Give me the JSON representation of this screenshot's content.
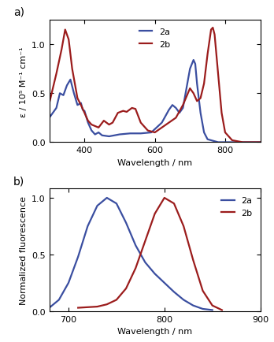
{
  "chart_data": [
    {
      "type": "line",
      "title": "a)",
      "x_label": "Wavelength / nm",
      "y_label": "ε / 10⁵ M⁻¹ cm⁻¹",
      "xlim": [
        300,
        900
      ],
      "xticks": [
        400,
        600,
        800
      ],
      "ylim": [
        0,
        1.25
      ],
      "yticks": [
        {
          "value": 0,
          "label": "0.0"
        },
        {
          "value": 0.5,
          "label": "0.5"
        },
        {
          "value": 1.0,
          "label": "1.0"
        }
      ],
      "legend": "upper center",
      "series": [
        {
          "name": "2a",
          "color": "#3a4ea0",
          "x": [
            300,
            320,
            330,
            340,
            350,
            360,
            370,
            380,
            390,
            395,
            400,
            410,
            420,
            430,
            440,
            450,
            470,
            500,
            530,
            560,
            590,
            620,
            640,
            650,
            660,
            670,
            680,
            690,
            700,
            710,
            715,
            720,
            730,
            740,
            750,
            780,
            900
          ],
          "values": [
            0.25,
            0.35,
            0.5,
            0.48,
            0.58,
            0.64,
            0.5,
            0.38,
            0.4,
            0.33,
            0.32,
            0.2,
            0.12,
            0.08,
            0.1,
            0.07,
            0.06,
            0.08,
            0.09,
            0.09,
            0.1,
            0.2,
            0.33,
            0.38,
            0.35,
            0.3,
            0.35,
            0.55,
            0.75,
            0.84,
            0.8,
            0.6,
            0.3,
            0.1,
            0.03,
            0.0,
            0.0
          ]
        },
        {
          "name": "2b",
          "color": "#9b1c1c",
          "x": [
            300,
            320,
            335,
            345,
            355,
            365,
            380,
            390,
            400,
            410,
            420,
            440,
            455,
            470,
            480,
            495,
            510,
            520,
            535,
            545,
            560,
            580,
            600,
            620,
            640,
            660,
            680,
            700,
            710,
            720,
            730,
            740,
            750,
            760,
            765,
            770,
            780,
            790,
            800,
            820,
            850,
            900
          ],
          "values": [
            0.4,
            0.7,
            0.95,
            1.15,
            1.05,
            0.75,
            0.45,
            0.38,
            0.3,
            0.22,
            0.18,
            0.15,
            0.22,
            0.18,
            0.2,
            0.3,
            0.32,
            0.31,
            0.35,
            0.34,
            0.2,
            0.12,
            0.1,
            0.15,
            0.2,
            0.25,
            0.38,
            0.55,
            0.5,
            0.42,
            0.45,
            0.6,
            0.9,
            1.15,
            1.17,
            1.1,
            0.7,
            0.3,
            0.1,
            0.02,
            0.0,
            0.0
          ]
        }
      ]
    },
    {
      "type": "line",
      "title": "b)",
      "x_label": "Wavelength / nm",
      "y_label": "Normalized fluorescence",
      "xlim": [
        680,
        900
      ],
      "xticks": [
        700,
        800,
        900
      ],
      "ylim": [
        0,
        1.08
      ],
      "yticks": [
        {
          "value": 0,
          "label": "0.0"
        },
        {
          "value": 0.5,
          "label": "0.5"
        },
        {
          "value": 1.0,
          "label": "1.0"
        }
      ],
      "legend": "upper right",
      "series": [
        {
          "name": "2a",
          "color": "#3a4ea0",
          "x": [
            680,
            690,
            700,
            710,
            720,
            730,
            740,
            750,
            760,
            770,
            780,
            790,
            800,
            810,
            820,
            830,
            840,
            850
          ],
          "values": [
            0.03,
            0.1,
            0.25,
            0.48,
            0.75,
            0.93,
            1.0,
            0.95,
            0.78,
            0.58,
            0.43,
            0.33,
            0.25,
            0.17,
            0.1,
            0.05,
            0.02,
            0.01
          ]
        },
        {
          "name": "2b",
          "color": "#9b1c1c",
          "x": [
            710,
            730,
            740,
            750,
            760,
            770,
            780,
            790,
            800,
            810,
            820,
            830,
            840,
            850,
            860
          ],
          "values": [
            0.03,
            0.04,
            0.06,
            0.1,
            0.2,
            0.38,
            0.62,
            0.86,
            1.0,
            0.95,
            0.75,
            0.45,
            0.18,
            0.05,
            0.01
          ]
        }
      ]
    }
  ]
}
